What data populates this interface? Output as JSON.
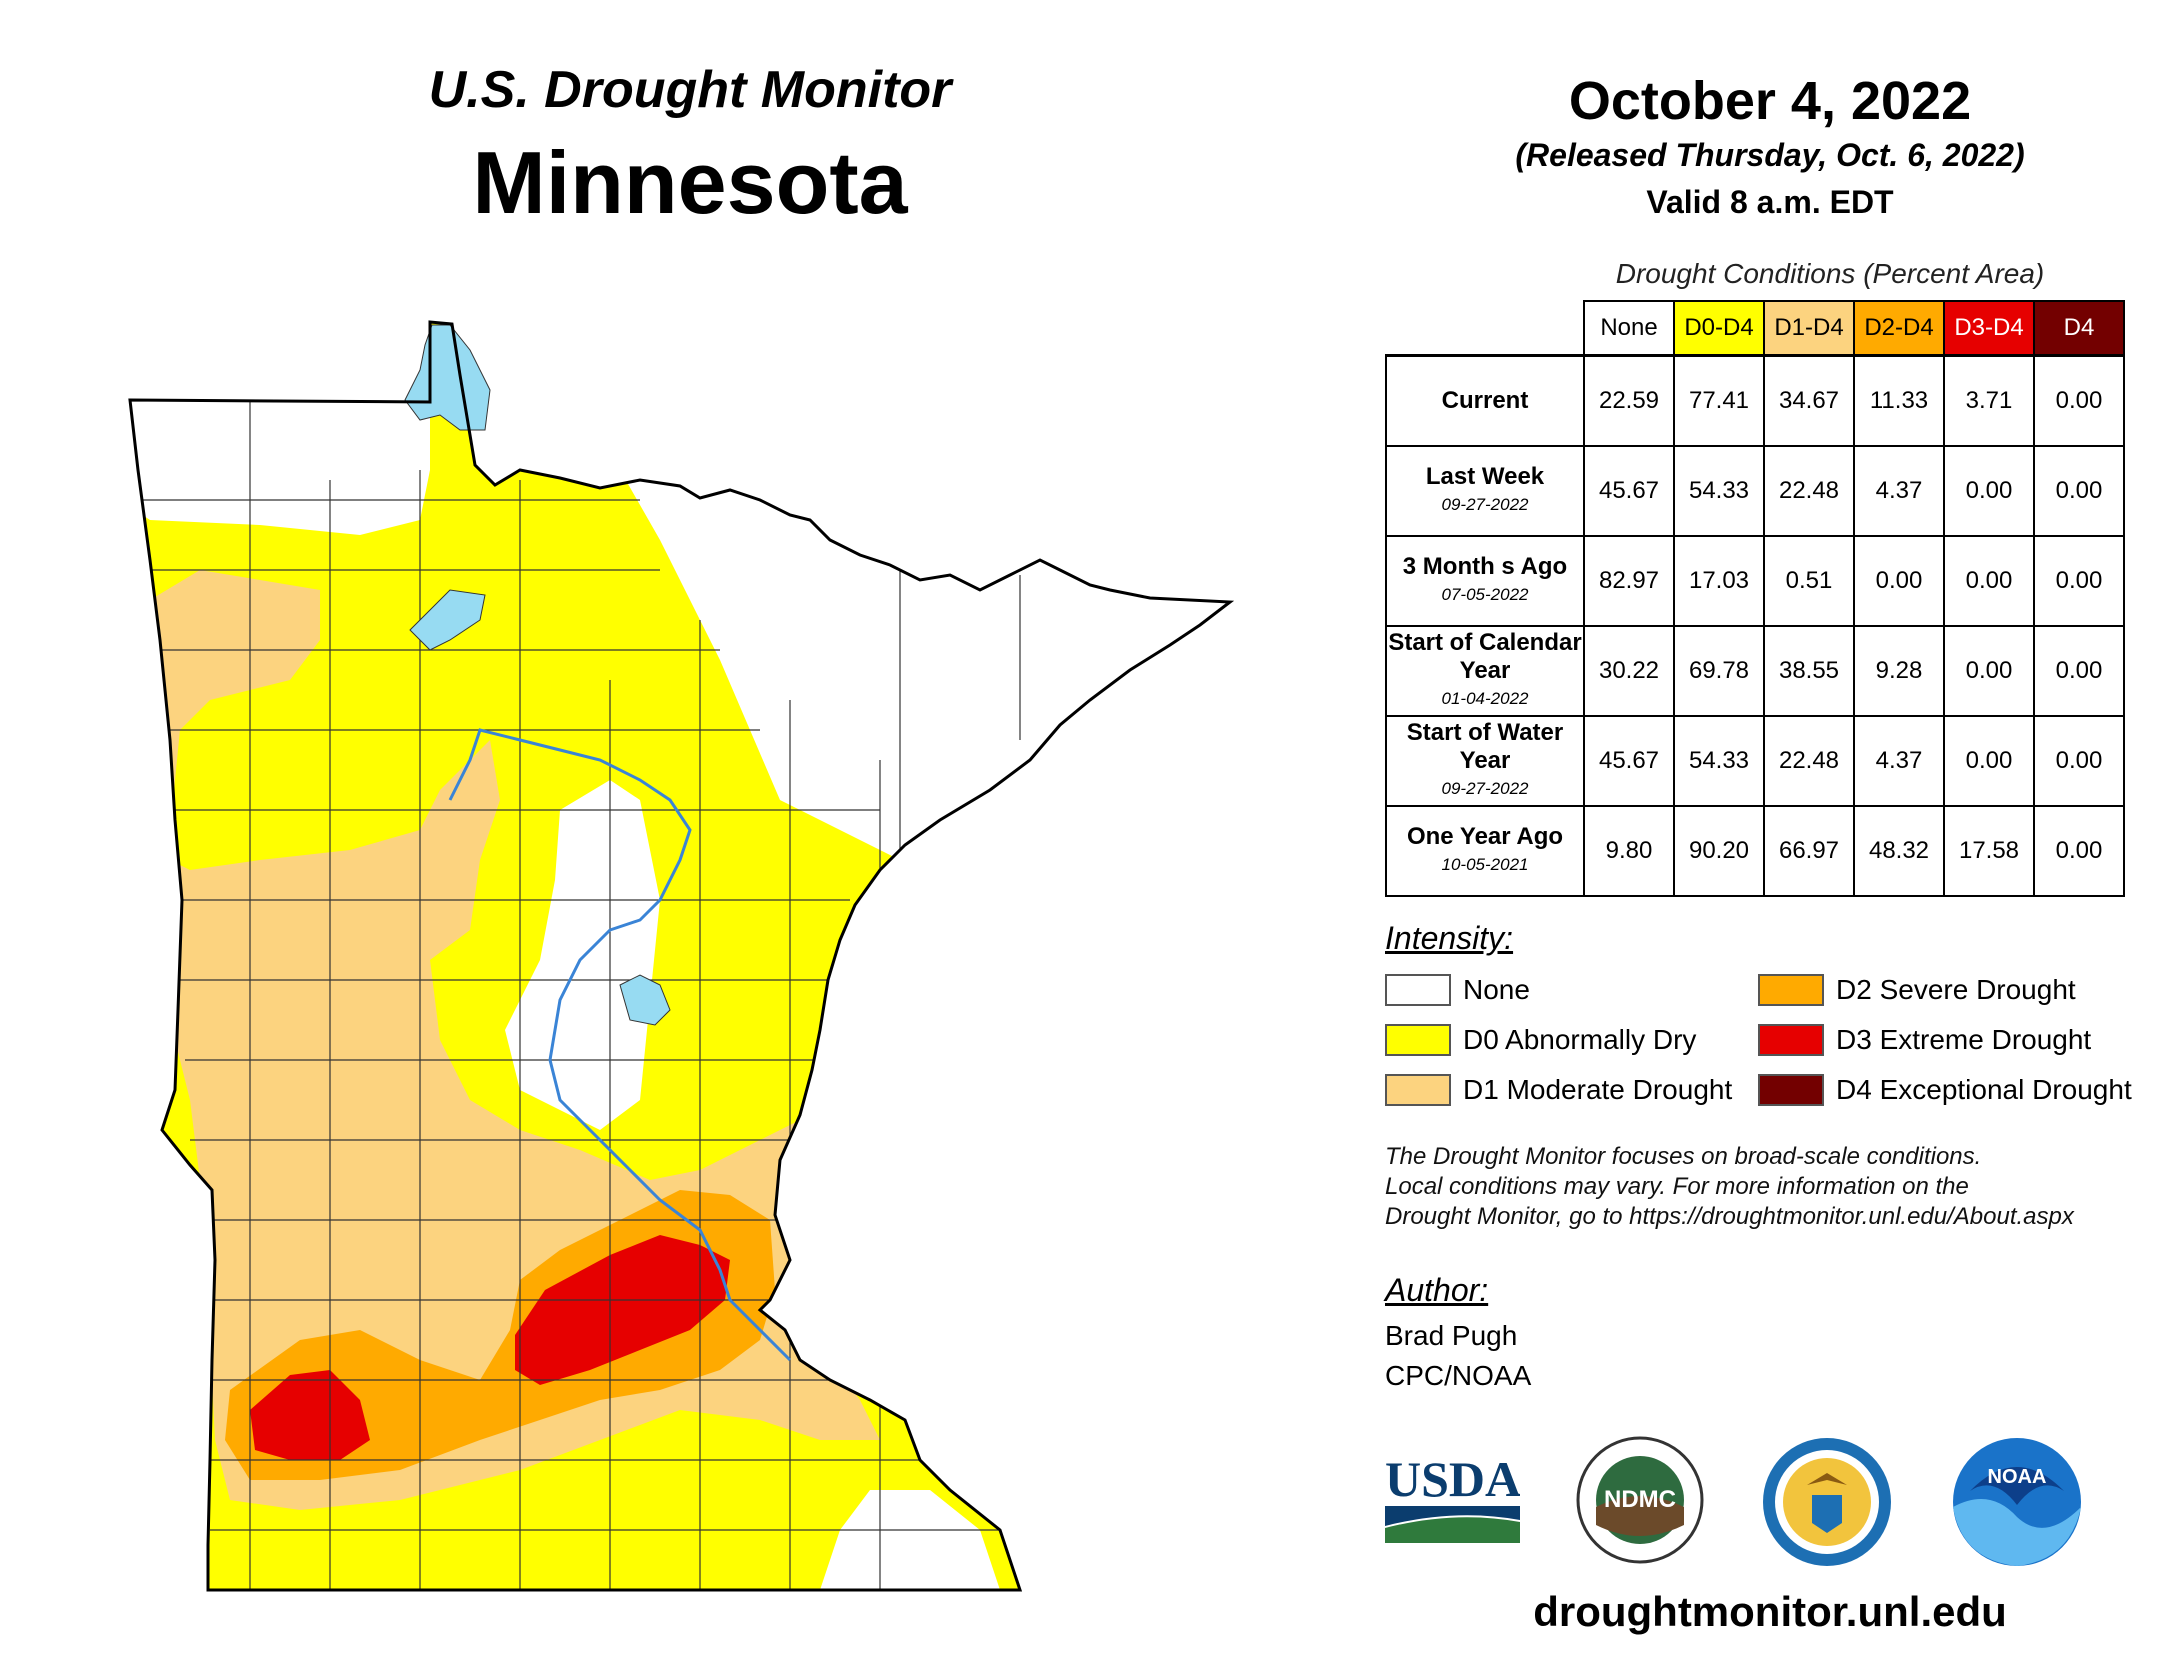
{
  "header": {
    "title_line1": "U.S. Drought Monitor",
    "title_line2": "Minnesota"
  },
  "date": {
    "main": "October 4, 2022",
    "released": "(Released Thursday, Oct. 6, 2022)",
    "valid": "Valid 8 a.m. EDT"
  },
  "table": {
    "caption": "Drought Conditions (Percent Area)",
    "columns": [
      "None",
      "D0-D4",
      "D1-D4",
      "D2-D4",
      "D3-D4",
      "D4"
    ],
    "rows": [
      {
        "label": "Current",
        "date": "",
        "values": [
          "22.59",
          "77.41",
          "34.67",
          "11.33",
          "3.71",
          "0.00"
        ]
      },
      {
        "label": "Last Week",
        "date": "09-27-2022",
        "values": [
          "45.67",
          "54.33",
          "22.48",
          "4.37",
          "0.00",
          "0.00"
        ]
      },
      {
        "label": "3 Month s Ago",
        "date": "07-05-2022",
        "values": [
          "82.97",
          "17.03",
          "0.51",
          "0.00",
          "0.00",
          "0.00"
        ]
      },
      {
        "label": "Start of Calendar Year",
        "date": "01-04-2022",
        "values": [
          "30.22",
          "69.78",
          "38.55",
          "9.28",
          "0.00",
          "0.00"
        ]
      },
      {
        "label": "Start of Water Year",
        "date": "09-27-2022",
        "values": [
          "45.67",
          "54.33",
          "22.48",
          "4.37",
          "0.00",
          "0.00"
        ]
      },
      {
        "label": "One Year Ago",
        "date": "10-05-2021",
        "values": [
          "9.80",
          "90.20",
          "66.97",
          "48.32",
          "17.58",
          "0.00"
        ]
      }
    ]
  },
  "legend": {
    "title": "Intensity:",
    "items": [
      {
        "label": "None",
        "color": "#ffffff"
      },
      {
        "label": "D0 Abnormally Dry",
        "color": "#ffff00"
      },
      {
        "label": "D1 Moderate Drought",
        "color": "#fcd37f"
      },
      {
        "label": "D2 Severe Drought",
        "color": "#ffaa00"
      },
      {
        "label": "D3 Extreme Drought",
        "color": "#e60000"
      },
      {
        "label": "D4 Exceptional Drought",
        "color": "#730000"
      }
    ]
  },
  "disclaimer": {
    "line1": "The Drought Monitor focuses on broad-scale conditions.",
    "line2": "Local conditions may vary. For more information on the",
    "line3": "Drought Monitor, go to https://droughtmonitor.unl.edu/About.aspx"
  },
  "author": {
    "label": "Author:",
    "name": "Brad Pugh",
    "org": "CPC/NOAA"
  },
  "logos": {
    "usda": "USDA",
    "ndmc": "NDMC",
    "noaa": "NOAA"
  },
  "footer": {
    "url": "droughtmonitor.unl.edu"
  },
  "colors": {
    "none": "#ffffff",
    "d0": "#ffff00",
    "d1": "#fcd37f",
    "d2": "#ffaa00",
    "d3": "#e60000",
    "d4": "#730000",
    "water": "#97dbf2"
  }
}
